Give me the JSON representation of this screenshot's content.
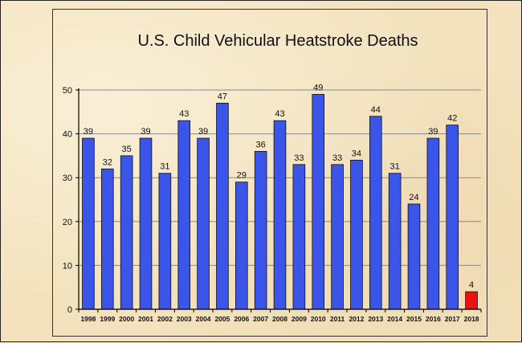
{
  "chart_data": {
    "type": "bar",
    "title": "U.S. Child Vehicular Heatstroke Deaths",
    "xlabel": "",
    "ylabel": "",
    "ylim": [
      0,
      50
    ],
    "yticks": [
      0,
      10,
      20,
      30,
      40,
      50
    ],
    "grid": true,
    "categories": [
      "1998",
      "1999",
      "2000",
      "2001",
      "2002",
      "2003",
      "2004",
      "2005",
      "2006",
      "2007",
      "2008",
      "2009",
      "2010",
      "2011",
      "2012",
      "2013",
      "2014",
      "2015",
      "2016",
      "2017",
      "2018"
    ],
    "values": [
      39,
      32,
      35,
      39,
      31,
      43,
      39,
      47,
      29,
      36,
      43,
      33,
      49,
      33,
      34,
      44,
      31,
      24,
      39,
      42,
      4
    ],
    "bar_color": "#3a55e8",
    "highlight_color": "#ee1111",
    "highlight_index": 20
  }
}
